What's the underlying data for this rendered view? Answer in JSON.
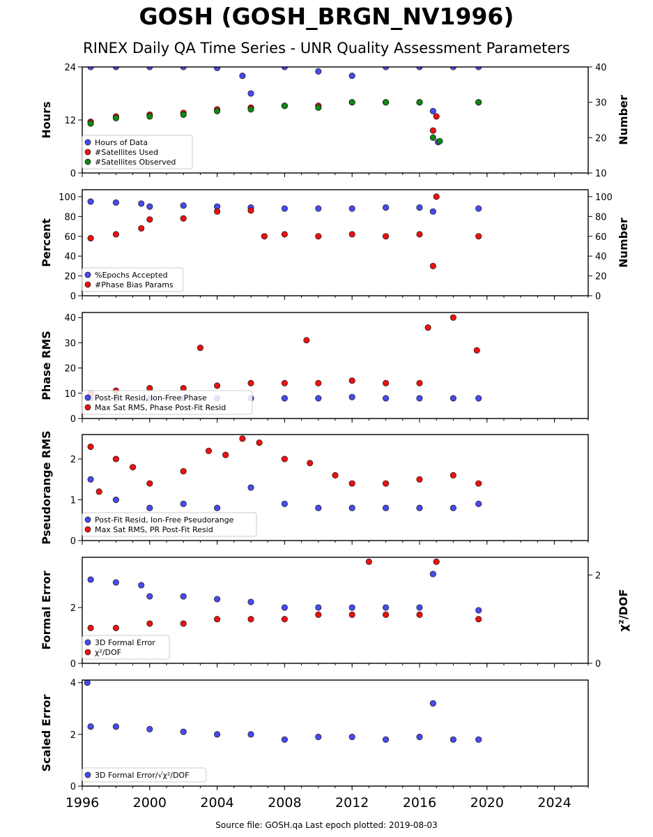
{
  "title": "GOSH (GOSH_BRGN_NV1996)",
  "subtitle": "RINEX Daily QA Time Series - UNR Quality Assessment Parameters",
  "footer": "Source file: GOSH.qa Last epoch plotted: 2019-08-03",
  "colors": {
    "blue": "#4a4af0",
    "red": "#ee1111",
    "green": "#118811"
  },
  "chart_data": [
    {
      "type": "scatter",
      "ylabel": "Hours",
      "y2label": "Number",
      "ylim": [
        0,
        24
      ],
      "yticks": [
        0,
        12,
        24
      ],
      "y2lim": [
        10,
        40
      ],
      "y2ticks": [
        10,
        20,
        30,
        40
      ],
      "xlim": [
        1996,
        2026
      ],
      "xticks": [
        1996,
        2000,
        2004,
        2008,
        2012,
        2016,
        2020,
        2024
      ],
      "legend_position": "lower-left",
      "series": [
        {
          "name": "Hours of Data",
          "axis": "left",
          "color": "blue",
          "points": [
            [
              1996.5,
              24
            ],
            [
              1998,
              24
            ],
            [
              2000,
              24
            ],
            [
              2002,
              24
            ],
            [
              2004,
              23.8
            ],
            [
              2005.5,
              22
            ],
            [
              2006,
              18
            ],
            [
              2008,
              24
            ],
            [
              2010,
              23
            ],
            [
              2012,
              22
            ],
            [
              2014,
              24
            ],
            [
              2016,
              24
            ],
            [
              2016.8,
              14
            ],
            [
              2017.1,
              7
            ],
            [
              2018,
              24
            ],
            [
              2019.5,
              24
            ]
          ]
        },
        {
          "name": "#Satellites Used",
          "axis": "right",
          "color": "red",
          "points": [
            [
              1996.5,
              24.5
            ],
            [
              1998,
              26
            ],
            [
              2000,
              26.5
            ],
            [
              2002,
              27
            ],
            [
              2004,
              28
            ],
            [
              2006,
              28.5
            ],
            [
              2008,
              29
            ],
            [
              2010,
              29
            ],
            [
              2012,
              30
            ],
            [
              2014,
              30
            ],
            [
              2016,
              30
            ],
            [
              2016.8,
              22
            ],
            [
              2017,
              26
            ],
            [
              2019.5,
              30
            ]
          ]
        },
        {
          "name": "#Satellites Observed",
          "axis": "right",
          "color": "green",
          "points": [
            [
              1996.5,
              24
            ],
            [
              1998,
              25.5
            ],
            [
              2000,
              26
            ],
            [
              2002,
              26.5
            ],
            [
              2004,
              27.5
            ],
            [
              2006,
              28
            ],
            [
              2008,
              29
            ],
            [
              2010,
              28.5
            ],
            [
              2012,
              30
            ],
            [
              2014,
              30
            ],
            [
              2016,
              30
            ],
            [
              2016.8,
              20
            ],
            [
              2017.2,
              19
            ],
            [
              2019.5,
              30
            ]
          ]
        }
      ]
    },
    {
      "type": "scatter",
      "ylabel": "Percent",
      "y2label": "Number",
      "ylim": [
        0,
        107
      ],
      "yticks": [
        0,
        20,
        40,
        60,
        80,
        100
      ],
      "y2lim": [
        0,
        107
      ],
      "y2ticks": [
        0,
        20,
        40,
        60,
        80,
        100
      ],
      "xlim": [
        1996,
        2026
      ],
      "xticks": [
        1996,
        2000,
        2004,
        2008,
        2012,
        2016,
        2020,
        2024
      ],
      "legend_position": "lower-left",
      "series": [
        {
          "name": "%Epochs Accepted",
          "axis": "left",
          "color": "blue",
          "points": [
            [
              1996.5,
              95
            ],
            [
              1998,
              94
            ],
            [
              1999.5,
              93
            ],
            [
              2000,
              90
            ],
            [
              2002,
              91
            ],
            [
              2004,
              90
            ],
            [
              2006,
              89
            ],
            [
              2008,
              88
            ],
            [
              2010,
              88
            ],
            [
              2012,
              88
            ],
            [
              2014,
              89
            ],
            [
              2016,
              89
            ],
            [
              2016.8,
              85
            ],
            [
              2019.5,
              88
            ]
          ]
        },
        {
          "name": "#Phase Bias Params",
          "axis": "right",
          "color": "red",
          "points": [
            [
              1996.5,
              58
            ],
            [
              1998,
              62
            ],
            [
              1999.5,
              68
            ],
            [
              2000,
              77
            ],
            [
              2002,
              78
            ],
            [
              2004,
              85
            ],
            [
              2006,
              86
            ],
            [
              2006.8,
              60
            ],
            [
              2008,
              62
            ],
            [
              2010,
              60
            ],
            [
              2012,
              62
            ],
            [
              2014,
              60
            ],
            [
              2016,
              62
            ],
            [
              2016.8,
              30
            ],
            [
              2017,
              100
            ],
            [
              2019.5,
              60
            ]
          ]
        }
      ]
    },
    {
      "type": "scatter",
      "ylabel": "Phase RMS",
      "ylim": [
        0,
        42
      ],
      "yticks": [
        0,
        10,
        20,
        30,
        40
      ],
      "xlim": [
        1996,
        2026
      ],
      "xticks": [
        1996,
        2000,
        2004,
        2008,
        2012,
        2016,
        2020,
        2024
      ],
      "legend_position": "lower-left",
      "series": [
        {
          "name": "Post-Fit Resid, Ion-Free Phase",
          "axis": "left",
          "color": "blue",
          "points": [
            [
              1996.5,
              8
            ],
            [
              1998,
              8
            ],
            [
              2000,
              8
            ],
            [
              2002,
              8
            ],
            [
              2004,
              8
            ],
            [
              2006,
              8
            ],
            [
              2008,
              8
            ],
            [
              2010,
              8
            ],
            [
              2012,
              8.5
            ],
            [
              2014,
              8
            ],
            [
              2016,
              8
            ],
            [
              2018,
              8
            ],
            [
              2019.5,
              8
            ]
          ]
        },
        {
          "name": "Max Sat RMS, Phase Post-Fit Resid",
          "axis": "left",
          "color": "red",
          "points": [
            [
              1996.5,
              10
            ],
            [
              1998,
              11
            ],
            [
              2000,
              12
            ],
            [
              2002,
              12
            ],
            [
              2003,
              28
            ],
            [
              2004,
              13
            ],
            [
              2006,
              14
            ],
            [
              2008,
              14
            ],
            [
              2009.3,
              31
            ],
            [
              2010,
              14
            ],
            [
              2012,
              15
            ],
            [
              2014,
              14
            ],
            [
              2016,
              14
            ],
            [
              2016.5,
              36
            ],
            [
              2018,
              40
            ],
            [
              2019.4,
              27
            ]
          ]
        }
      ]
    },
    {
      "type": "scatter",
      "ylabel": "Pseudorange RMS",
      "ylim": [
        0,
        2.6
      ],
      "yticks": [
        0,
        1,
        2
      ],
      "xlim": [
        1996,
        2026
      ],
      "xticks": [
        1996,
        2000,
        2004,
        2008,
        2012,
        2016,
        2020,
        2024
      ],
      "legend_position": "lower-left",
      "series": [
        {
          "name": "Post-Fit Resid, Ion-Free Pseudorange",
          "axis": "left",
          "color": "blue",
          "points": [
            [
              1996.5,
              1.5
            ],
            [
              1998,
              1.0
            ],
            [
              2000,
              0.8
            ],
            [
              2002,
              0.9
            ],
            [
              2004,
              0.8
            ],
            [
              2006,
              1.3
            ],
            [
              2008,
              0.9
            ],
            [
              2010,
              0.8
            ],
            [
              2012,
              0.8
            ],
            [
              2014,
              0.8
            ],
            [
              2016,
              0.8
            ],
            [
              2018,
              0.8
            ],
            [
              2019.5,
              0.9
            ]
          ]
        },
        {
          "name": "Max Sat RMS, PR Post-Fit Resid",
          "axis": "left",
          "color": "red",
          "points": [
            [
              1996.5,
              2.3
            ],
            [
              1997,
              1.2
            ],
            [
              1998,
              2.0
            ],
            [
              1999,
              1.8
            ],
            [
              2000,
              1.4
            ],
            [
              2002,
              1.7
            ],
            [
              2003.5,
              2.2
            ],
            [
              2004.5,
              2.1
            ],
            [
              2005.5,
              2.5
            ],
            [
              2006.5,
              2.4
            ],
            [
              2008,
              2.0
            ],
            [
              2009.5,
              1.9
            ],
            [
              2011,
              1.6
            ],
            [
              2012,
              1.4
            ],
            [
              2014,
              1.4
            ],
            [
              2016,
              1.5
            ],
            [
              2018,
              1.6
            ],
            [
              2019.5,
              1.4
            ]
          ]
        }
      ]
    },
    {
      "type": "scatter",
      "ylabel": "Formal Error",
      "y2label": "χ²/DOF",
      "ylim": [
        0,
        3.8
      ],
      "yticks": [
        0,
        2
      ],
      "y2lim": [
        0,
        2.4
      ],
      "y2ticks": [
        0,
        2
      ],
      "xlim": [
        1996,
        2026
      ],
      "xticks": [
        1996,
        2000,
        2004,
        2008,
        2012,
        2016,
        2020,
        2024
      ],
      "legend_position": "lower-left",
      "series": [
        {
          "name": "3D Formal Error",
          "axis": "left",
          "color": "blue",
          "points": [
            [
              1996.5,
              3.0
            ],
            [
              1998,
              2.9
            ],
            [
              1999.5,
              2.8
            ],
            [
              2000,
              2.4
            ],
            [
              2002,
              2.4
            ],
            [
              2004,
              2.3
            ],
            [
              2006,
              2.2
            ],
            [
              2008,
              2.0
            ],
            [
              2010,
              2.0
            ],
            [
              2012,
              2.0
            ],
            [
              2014,
              2.0
            ],
            [
              2016,
              2.0
            ],
            [
              2016.8,
              3.2
            ],
            [
              2019.5,
              1.9
            ]
          ]
        },
        {
          "name": "χ²/DOF",
          "axis": "right",
          "color": "red",
          "points": [
            [
              1996.5,
              0.8
            ],
            [
              1998,
              0.8
            ],
            [
              2000,
              0.9
            ],
            [
              2002,
              0.9
            ],
            [
              2004,
              1.0
            ],
            [
              2006,
              1.0
            ],
            [
              2008,
              1.0
            ],
            [
              2010,
              1.1
            ],
            [
              2012,
              1.1
            ],
            [
              2013,
              2.3
            ],
            [
              2014,
              1.1
            ],
            [
              2016,
              1.1
            ],
            [
              2017,
              2.3
            ],
            [
              2019.5,
              1.0
            ]
          ]
        }
      ]
    },
    {
      "type": "scatter",
      "ylabel": "Scaled Error",
      "ylim": [
        0,
        4.1
      ],
      "yticks": [
        0,
        2,
        4
      ],
      "xlim": [
        1996,
        2026
      ],
      "xticks": [
        1996,
        2000,
        2004,
        2008,
        2012,
        2016,
        2020,
        2024
      ],
      "legend_position": "lower-left",
      "series": [
        {
          "name": "3D Formal Error/√χ²/DOF",
          "axis": "left",
          "color": "blue",
          "points": [
            [
              1996.3,
              4.0
            ],
            [
              1996.5,
              2.3
            ],
            [
              1998,
              2.3
            ],
            [
              2000,
              2.2
            ],
            [
              2002,
              2.1
            ],
            [
              2004,
              2.0
            ],
            [
              2006,
              2.0
            ],
            [
              2008,
              1.8
            ],
            [
              2010,
              1.9
            ],
            [
              2012,
              1.9
            ],
            [
              2014,
              1.8
            ],
            [
              2016,
              1.9
            ],
            [
              2016.8,
              3.2
            ],
            [
              2018,
              1.8
            ],
            [
              2019.5,
              1.8
            ]
          ]
        }
      ]
    }
  ]
}
